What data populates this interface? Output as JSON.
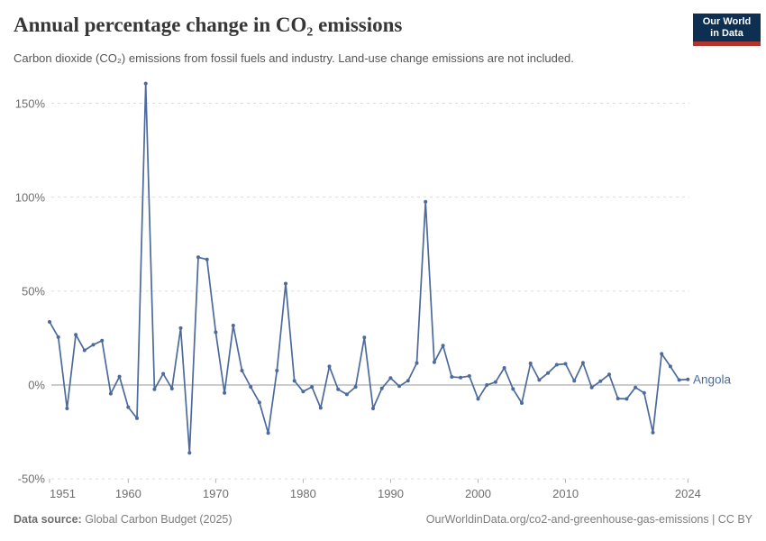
{
  "header": {
    "title": "Annual percentage change in CO₂ emissions",
    "subtitle": "Carbon dioxide (CO₂) emissions from fossil fuels and industry. Land-use change emissions are not included.",
    "logo": {
      "line1": "Our World",
      "line2": "in Data"
    }
  },
  "chart_data": {
    "type": "line",
    "title": "Annual percentage change in CO₂ emissions",
    "entity": "Angola",
    "unit": "%",
    "grid": true,
    "legend_position": "end-of-line",
    "ylim": [
      -50,
      165
    ],
    "ygrid": [
      150,
      100,
      50,
      0,
      -50
    ],
    "ytick_labels": [
      "150%",
      "100%",
      "50%",
      "0%",
      "-50%"
    ],
    "xticks": [
      1951,
      1960,
      1970,
      1980,
      1990,
      2000,
      2010,
      2024
    ],
    "xtick_labels": [
      "1951",
      "1960",
      "1970",
      "1980",
      "1990",
      "2000",
      "2010",
      "2024"
    ],
    "line_color": "#4c6a9c",
    "x": [
      1951,
      1952,
      1953,
      1954,
      1955,
      1956,
      1957,
      1958,
      1959,
      1960,
      1961,
      1962,
      1963,
      1964,
      1965,
      1966,
      1967,
      1968,
      1969,
      1970,
      1971,
      1972,
      1973,
      1974,
      1975,
      1976,
      1977,
      1978,
      1979,
      1980,
      1981,
      1982,
      1983,
      1984,
      1985,
      1986,
      1987,
      1988,
      1989,
      1990,
      1991,
      1992,
      1993,
      1994,
      1995,
      1996,
      1997,
      1998,
      1999,
      2000,
      2001,
      2002,
      2003,
      2004,
      2005,
      2006,
      2007,
      2008,
      2009,
      2010,
      2011,
      2012,
      2013,
      2014,
      2015,
      2016,
      2017,
      2018,
      2019,
      2020,
      2021,
      2022,
      2023,
      2024
    ],
    "values": [
      33.6,
      25.5,
      -12.5,
      26.8,
      18.5,
      21.4,
      23.6,
      -4.6,
      4.5,
      -11.8,
      -17.7,
      160.5,
      -2.3,
      6.0,
      -1.9,
      30.3,
      -36.1,
      68.0,
      66.8,
      28.1,
      -4.2,
      31.7,
      7.7,
      -1.0,
      -9.3,
      -25.6,
      7.7,
      54.0,
      2.2,
      -3.5,
      -1.0,
      -12.2,
      9.9,
      -2.3,
      -5.0,
      -1.0,
      25.3,
      -12.5,
      -1.8,
      3.7,
      -0.6,
      2.3,
      11.7,
      97.6,
      12.1,
      21.0,
      4.3,
      4.0,
      4.8,
      -7.4,
      0.0,
      1.6,
      9.1,
      -2.1,
      -9.6,
      11.5,
      2.7,
      6.4,
      10.8,
      11.3,
      2.2,
      11.8,
      -1.3,
      2.0,
      5.6,
      -7.2,
      -7.4,
      -1.3,
      -4.2,
      -25.3,
      16.6,
      9.9,
      2.7,
      3.0
    ]
  },
  "footer": {
    "source_label": "Data source:",
    "source": " Global Carbon Budget (2025)",
    "url": "OurWorldinData.org/co2-and-greenhouse-gas-emissions",
    "separator": " | ",
    "license": "CC BY"
  }
}
